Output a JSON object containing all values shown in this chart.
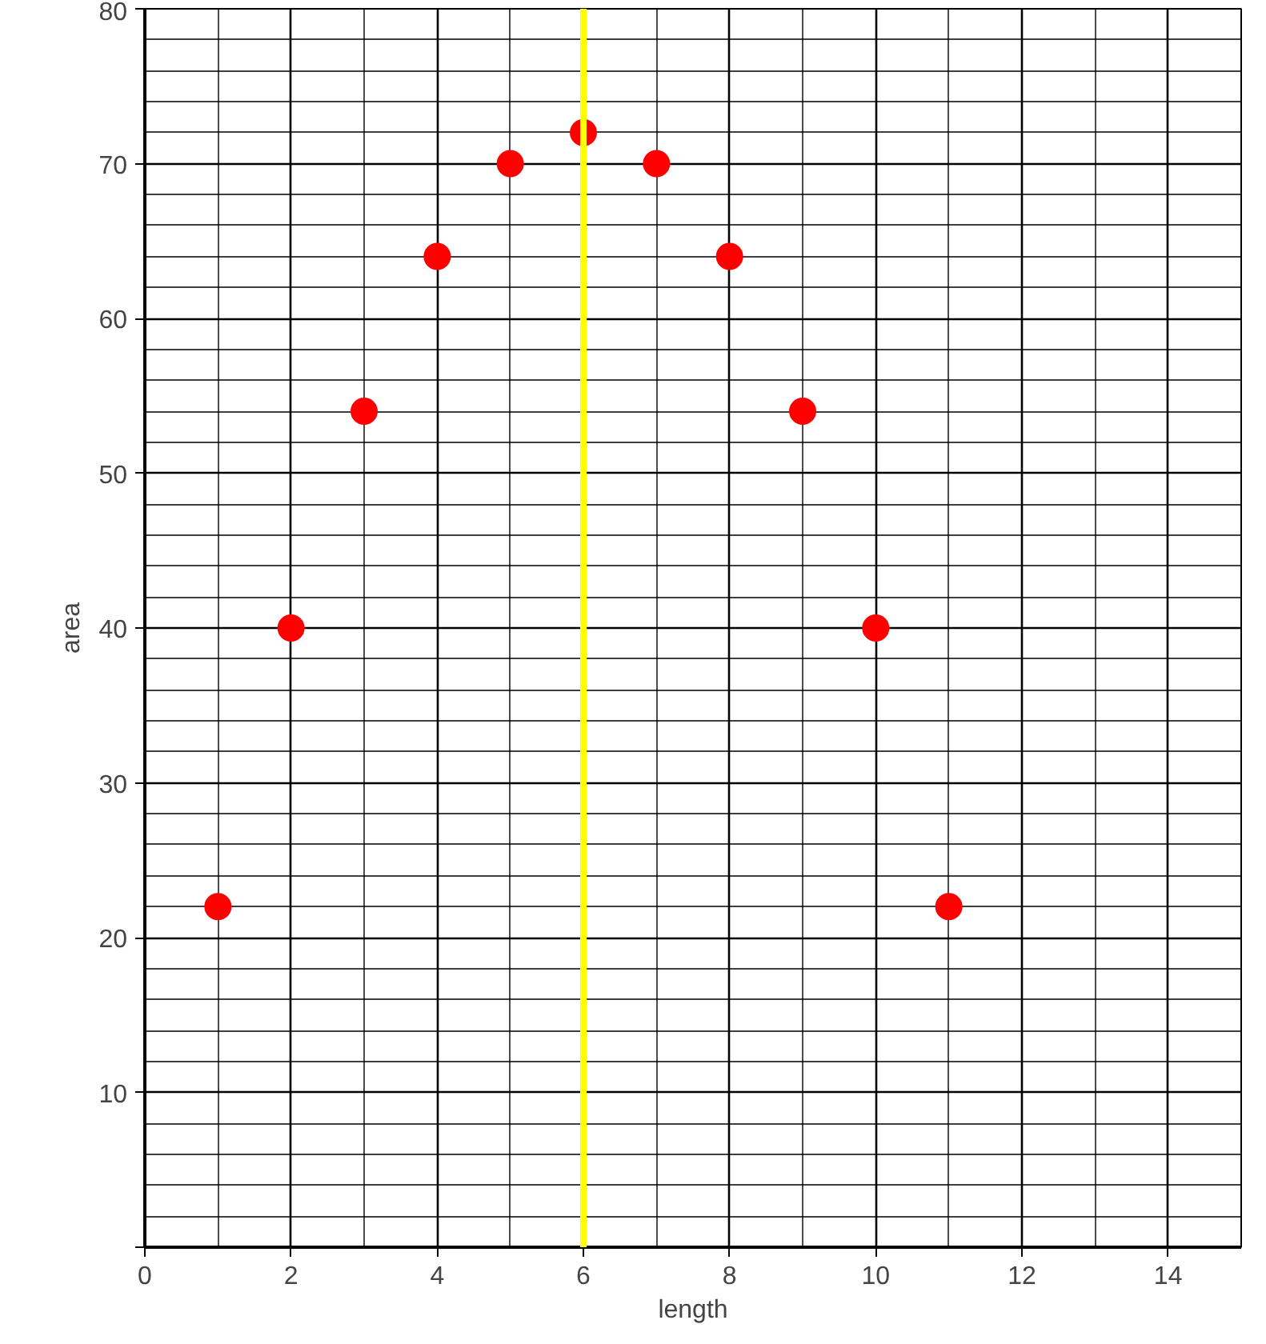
{
  "chart_data": {
    "type": "scatter",
    "xlabel": "length",
    "ylabel": "area",
    "x": [
      1,
      2,
      3,
      4,
      5,
      6,
      7,
      8,
      9,
      10,
      11
    ],
    "series": [
      {
        "color": "#ff0000",
        "values": [
          22,
          40,
          54,
          64,
          70,
          72,
          70,
          64,
          54,
          40,
          22
        ]
      }
    ],
    "xlim": [
      0,
      15
    ],
    "ylim": [
      0,
      80
    ],
    "xticks": [
      0,
      2,
      4,
      6,
      8,
      10,
      12,
      14
    ],
    "yticks": [
      {
        "value": 0,
        "label": null
      },
      10,
      20,
      30,
      40,
      50,
      60,
      70,
      80
    ],
    "grid": true,
    "marker": "circle",
    "ref_lines": [
      {
        "axis": "x",
        "value": 6,
        "color": "#ffff00"
      }
    ]
  }
}
